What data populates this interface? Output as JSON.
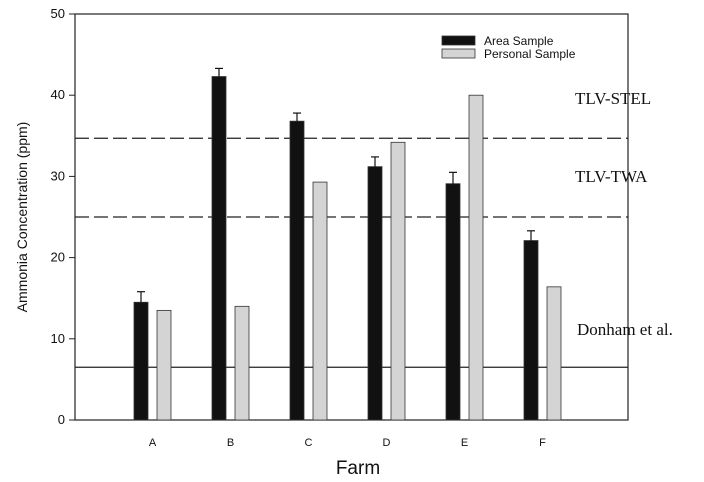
{
  "chart_data": {
    "type": "bar",
    "title": "",
    "xlabel": "Farm",
    "ylabel": "Ammonia Concentration (ppm)",
    "ylim": [
      0,
      50
    ],
    "yticks": [
      "0",
      "10",
      "20",
      "30",
      "40",
      "50"
    ],
    "categories": [
      "A",
      "B",
      "C",
      "D",
      "E",
      "F"
    ],
    "series": [
      {
        "name": "Area Sample",
        "values": [
          14.5,
          42.3,
          36.8,
          31.2,
          29.1,
          22.1
        ],
        "errors": [
          1.3,
          1.0,
          1.0,
          1.2,
          1.4,
          1.2
        ],
        "color": "#111111"
      },
      {
        "name": "Personal Sample",
        "values": [
          13.5,
          14.0,
          29.3,
          34.2,
          40.0,
          16.4
        ],
        "color": "#d4d4d4"
      }
    ],
    "reference_lines": [
      {
        "label": "TLV-STEL",
        "value": 34.7,
        "style": "dashed"
      },
      {
        "label": "TLV-TWA",
        "value": 25.0,
        "style": "dashed"
      },
      {
        "label": "Donham et al.",
        "value": 6.5,
        "style": "solid"
      }
    ],
    "legend_position": "top-right",
    "grid": false
  }
}
